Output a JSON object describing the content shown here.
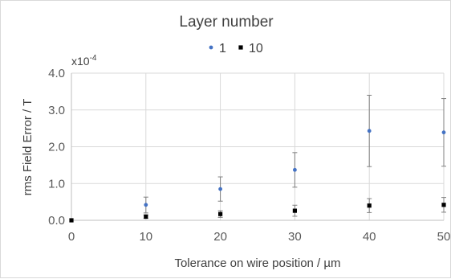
{
  "chart_data": {
    "type": "scatter",
    "title": "",
    "legend": {
      "title": "Layer number",
      "position": "top"
    },
    "xlabel": "Tolerance on wire position / µm",
    "ylabel": "rms Field Error / T",
    "y_multiplier": "x10",
    "y_multiplier_exp": "-4",
    "xlim": [
      0,
      50
    ],
    "ylim": [
      0,
      4.0
    ],
    "x_ticks": [
      "0",
      "10",
      "20",
      "30",
      "40",
      "50"
    ],
    "y_ticks": [
      "0.0",
      "1.0",
      "2.0",
      "3.0",
      "4.0"
    ],
    "grid": true,
    "series": [
      {
        "name": "1",
        "color": "#4472c4",
        "marker": "circle",
        "x": [
          0,
          10,
          20,
          30,
          40,
          50
        ],
        "y": [
          0.0,
          0.42,
          0.85,
          1.37,
          2.43,
          2.39
        ],
        "err_low": [
          0.0,
          0.22,
          0.33,
          0.47,
          0.97,
          0.92
        ],
        "err_high": [
          0.0,
          0.21,
          0.33,
          0.47,
          0.97,
          0.92
        ]
      },
      {
        "name": "10",
        "color": "#000000",
        "marker": "square",
        "x": [
          0,
          10,
          20,
          30,
          40,
          50
        ],
        "y": [
          0.0,
          0.1,
          0.17,
          0.26,
          0.4,
          0.42
        ],
        "err_low": [
          0.0,
          0.05,
          0.09,
          0.15,
          0.19,
          0.2
        ],
        "err_high": [
          0.0,
          0.05,
          0.09,
          0.15,
          0.19,
          0.2
        ]
      }
    ]
  }
}
